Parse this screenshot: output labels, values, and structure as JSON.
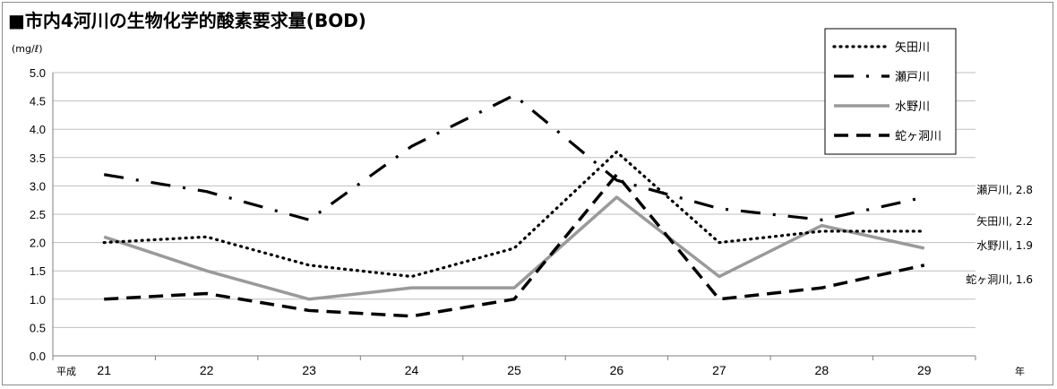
{
  "chart_data": {
    "type": "line",
    "title": "■市内4河川の生物化学的酸素要求量(BOD)",
    "unit_label": "(mg/ℓ)",
    "x_prefix": "平成",
    "x_suffix": "年",
    "categories": [
      "21",
      "22",
      "23",
      "24",
      "25",
      "26",
      "27",
      "28",
      "29"
    ],
    "ylim": [
      0,
      5.0
    ],
    "yticks": [
      "0.0",
      "0.5",
      "1.0",
      "1.5",
      "2.0",
      "2.5",
      "3.0",
      "3.5",
      "4.0",
      "4.5",
      "5.0"
    ],
    "grid": true,
    "legend_position": "top-right",
    "series": [
      {
        "name": "矢田川",
        "style": "dotted",
        "color": "#000000",
        "values": [
          2.0,
          2.1,
          1.6,
          1.4,
          1.9,
          3.6,
          2.0,
          2.2,
          2.2
        ],
        "end_label": "矢田川, 2.2"
      },
      {
        "name": "瀬戸川",
        "style": "dash-dot",
        "color": "#000000",
        "values": [
          3.2,
          2.9,
          2.4,
          3.7,
          4.6,
          3.1,
          2.6,
          2.4,
          2.8
        ],
        "end_label": "瀬戸川, 2.8"
      },
      {
        "name": "水野川",
        "style": "solid",
        "color": "#9a9a9a",
        "values": [
          2.1,
          1.5,
          1.0,
          1.2,
          1.2,
          2.8,
          1.4,
          2.3,
          1.9
        ],
        "end_label": "水野川, 1.9"
      },
      {
        "name": "蛇ヶ洞川",
        "style": "dashed",
        "color": "#000000",
        "values": [
          1.0,
          1.1,
          0.8,
          0.7,
          1.0,
          3.2,
          1.0,
          1.2,
          1.6
        ],
        "end_label": "蛇ヶ洞川, 1.6"
      }
    ]
  }
}
